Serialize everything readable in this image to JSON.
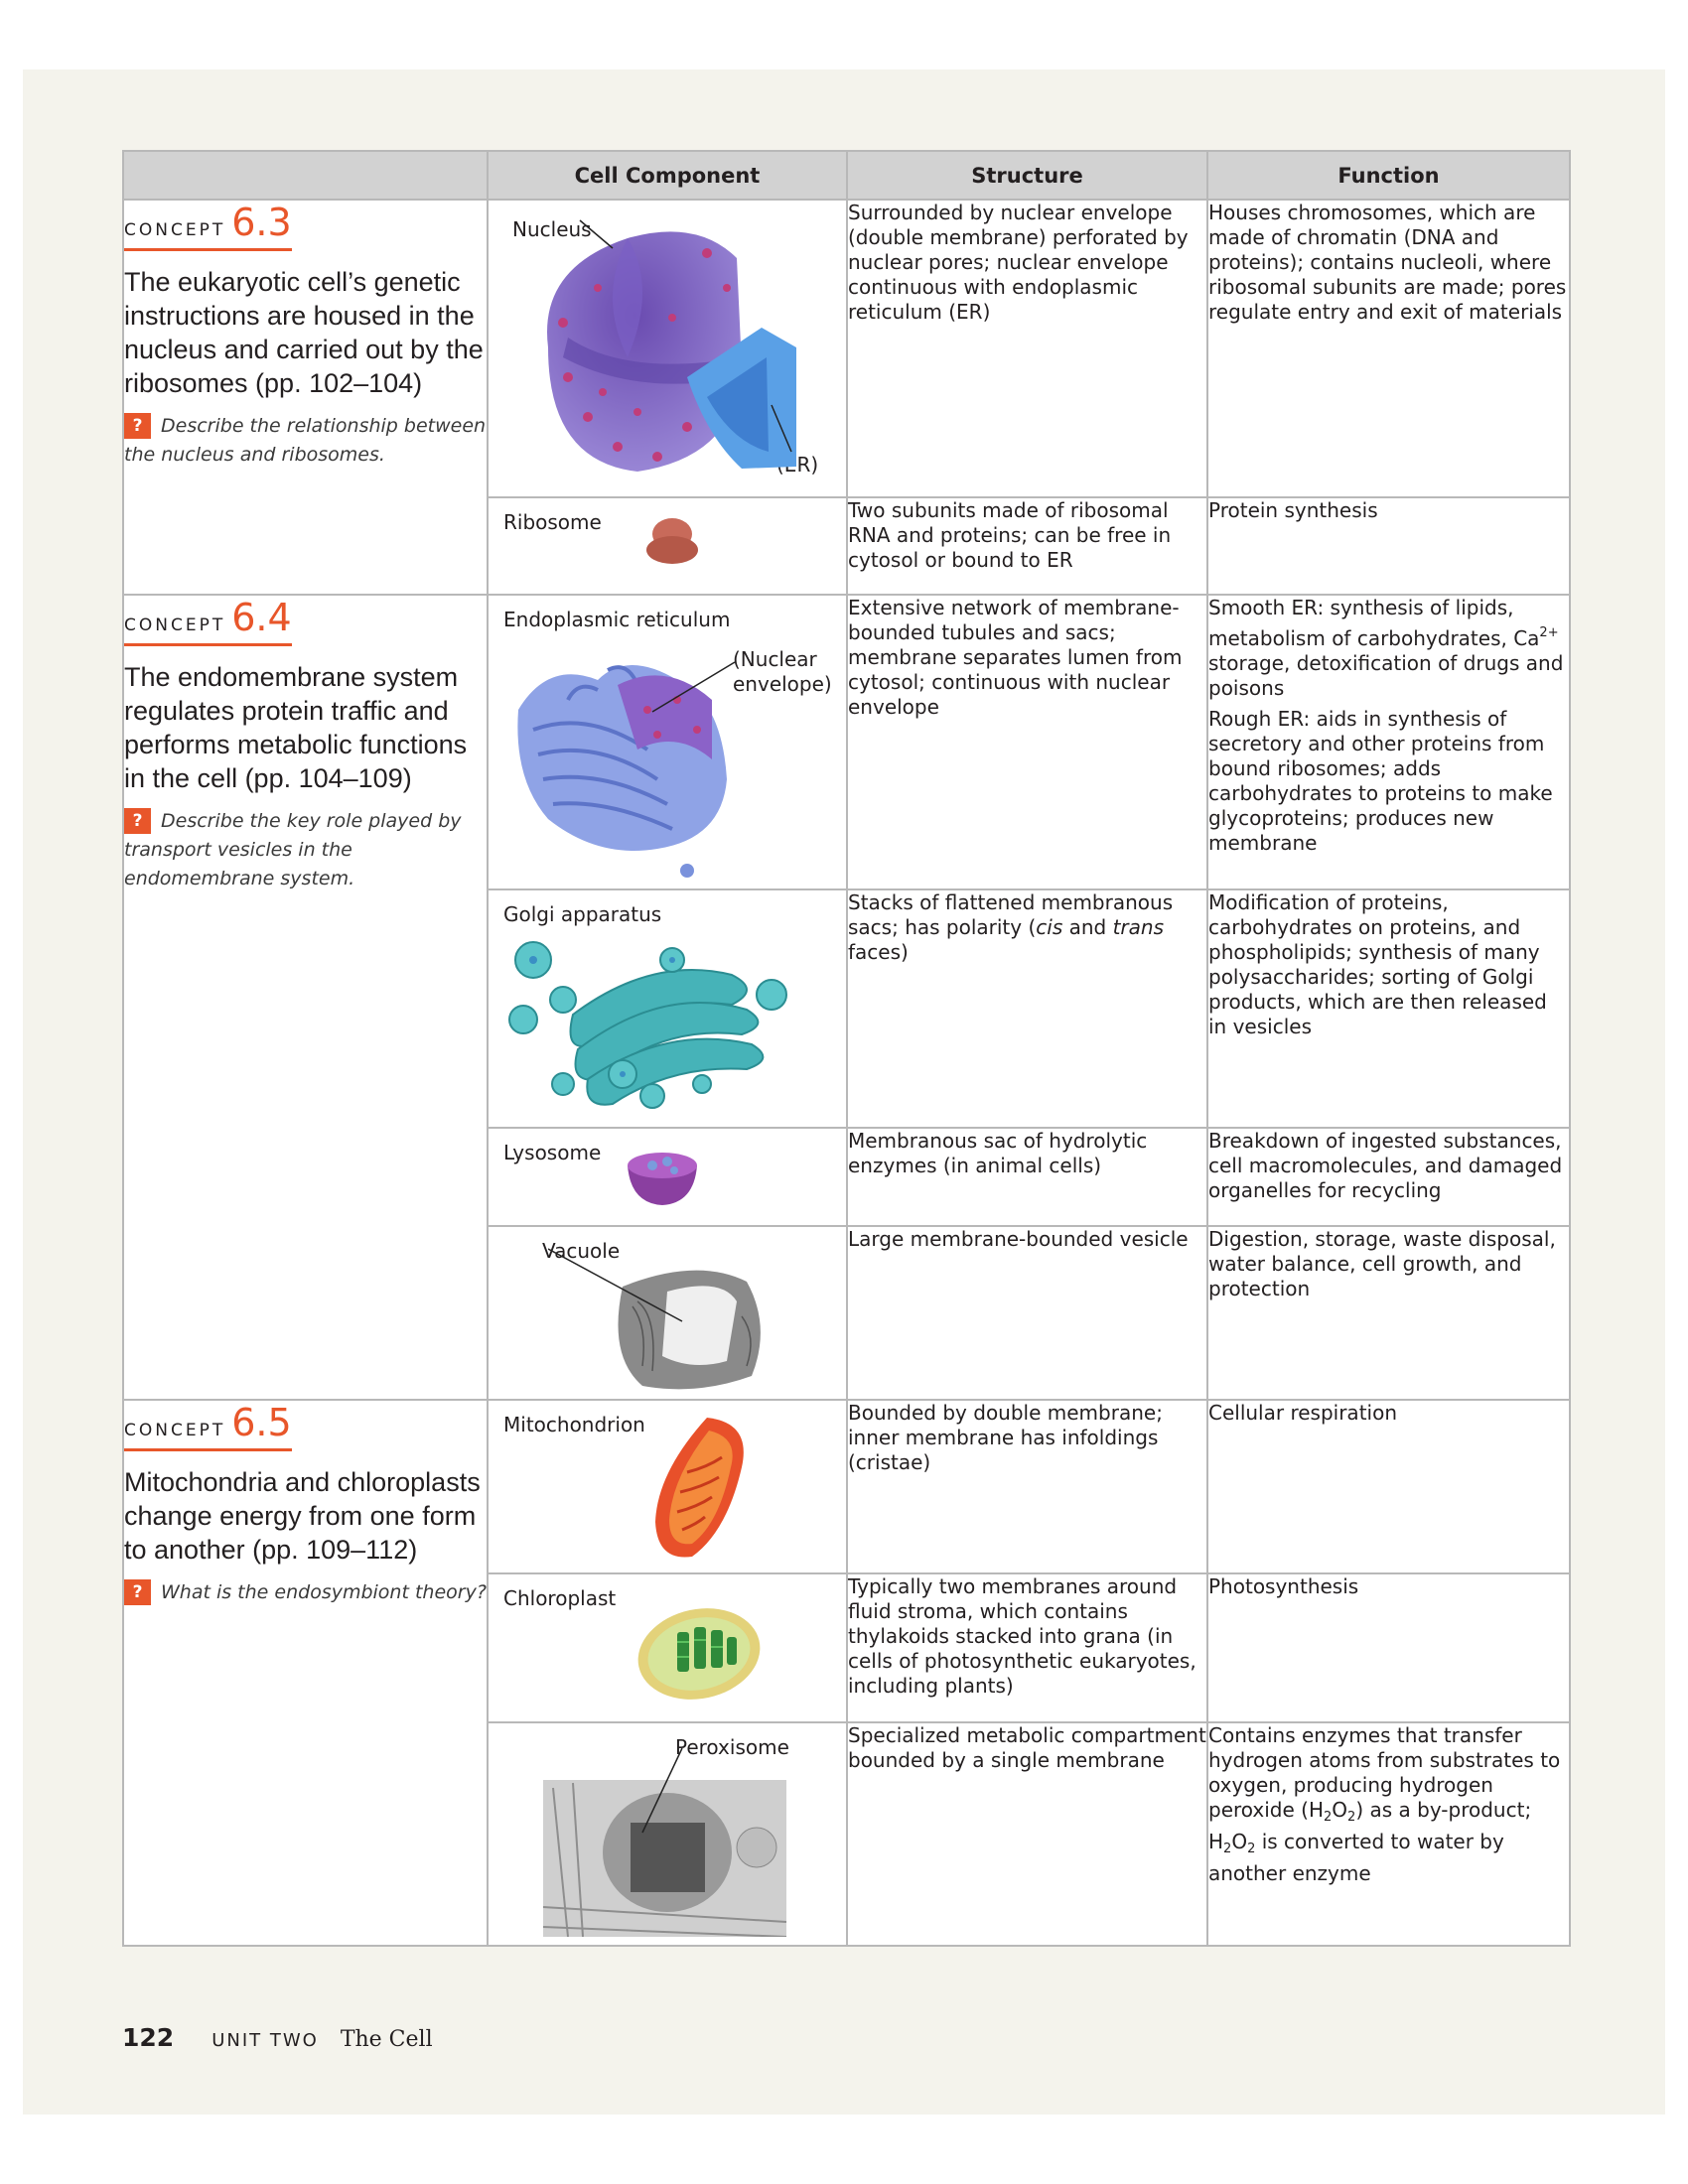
{
  "header": {
    "component": "Cell Component",
    "structure": "Structure",
    "function": "Function"
  },
  "concepts": [
    {
      "word": "CONCEPT",
      "number": "6.3",
      "title": "The eukaryotic cell’s genetic instructions are housed in the nucleus and carried out by the ribosomes (pp. 102–104)",
      "question": "Describe the relationship between the nucleus and ribosomes."
    },
    {
      "word": "CONCEPT",
      "number": "6.4",
      "title": "The endomembrane system regulates protein traffic and performs metabolic functions in the cell (pp. 104–109)",
      "question": "Describe the key role played by transport vesicles in the endomembrane system."
    },
    {
      "word": "CONCEPT",
      "number": "6.5",
      "title": "Mitochondria and chloroplasts change energy from one form to another (pp. 109–112)",
      "question": "What is the endosymbiont theory?"
    }
  ],
  "question_mark": "?",
  "rows": {
    "nucleus": {
      "name": "Nucleus",
      "callout": "(ER)",
      "structure": "Surrounded by nuclear envelope (double membrane) perforated by nuclear pores; nuclear envelope continuous with endoplasmic reticulum (ER)",
      "function": "Houses chromosomes, which are made of chromatin (DNA and proteins); contains nucleoli, where ribosomal subunits are made; pores regulate entry and exit of materials"
    },
    "ribosome": {
      "name": "Ribosome",
      "structure": "Two subunits made of ribosomal RNA and proteins; can be free in cytosol or bound to ER",
      "function": "Protein synthesis"
    },
    "er": {
      "name": "Endoplasmic reticulum",
      "callout": "(Nuclear envelope)",
      "structure": "Extensive network of membrane-bounded tubules and sacs; membrane separates lumen from cytosol; continuous with nuclear envelope",
      "function_smooth_a": "Smooth ER: synthesis of lipids, metabolism of carbohydrates, Ca",
      "function_smooth_sup": "2+",
      "function_smooth_b": " storage, detoxification of drugs and poisons",
      "function_rough": "Rough ER: aids in synthesis of secretory and other proteins from bound ribosomes; adds carbohydrates to proteins to make glycoproteins; produces new membrane"
    },
    "golgi": {
      "name": "Golgi apparatus",
      "structure_a": "Stacks of flattened membranous sacs; has polarity (",
      "structure_cis": "cis",
      "structure_and": " and ",
      "structure_trans": "trans",
      "structure_b": " faces)",
      "function": "Modification of proteins, carbohydrates on proteins, and phospholipids; synthesis of many polysaccharides; sorting of Golgi products, which are then released in vesicles"
    },
    "lysosome": {
      "name": "Lysosome",
      "structure": "Membranous sac of hydrolytic enzymes (in animal cells)",
      "function": "Breakdown of ingested substances, cell macromolecules, and damaged organelles for recycling"
    },
    "vacuole": {
      "name": "Vacuole",
      "structure": "Large membrane-bounded vesicle",
      "function": "Digestion, storage, waste disposal, water balance, cell growth, and protection"
    },
    "mitochondrion": {
      "name": "Mitochondrion",
      "structure": "Bounded by double membrane; inner membrane has infoldings (cristae)",
      "function": "Cellular respiration"
    },
    "chloroplast": {
      "name": "Chloroplast",
      "structure": "Typically two membranes around fluid stroma, which contains thylakoids stacked into grana (in cells of photosynthetic eukaryotes, including plants)",
      "function": "Photosynthesis"
    },
    "peroxisome": {
      "name": "Peroxisome",
      "structure": "Specialized metabolic compartment bounded by a single membrane",
      "function_a": "Contains enzymes that transfer hydrogen atoms from substrates to oxygen, producing hydrogen peroxide (H",
      "function_sub1": "2",
      "function_b": "O",
      "function_sub2": "2",
      "function_c": ") as a by-product; H",
      "function_sub3": "2",
      "function_d": "O",
      "function_sub4": "2",
      "function_e": " is converted to water by another enzyme"
    }
  },
  "footer": {
    "page_number": "122",
    "unit": "UNIT TWO",
    "section": "The Cell"
  }
}
